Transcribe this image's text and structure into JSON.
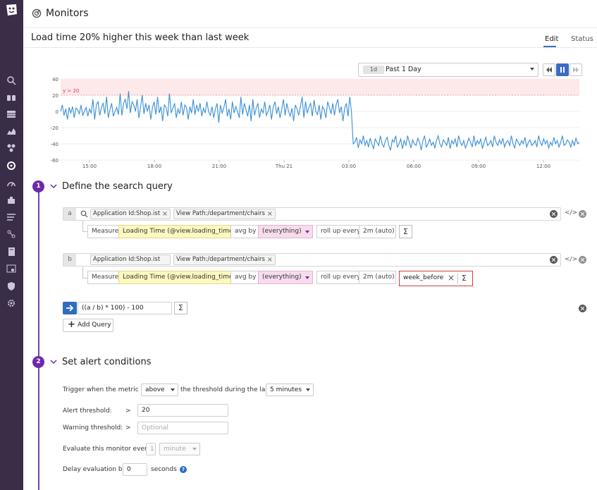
{
  "sidebar": {
    "logo": "datadog-logo",
    "icons": [
      "search-icon",
      "binoculars-icon",
      "dashboards-icon",
      "metrics-icon",
      "integrations-icon",
      "monitors-icon",
      "apm-icon",
      "infrastructure-icon",
      "logs-icon",
      "network-icon",
      "notebooks-icon",
      "rum-icon",
      "security-icon",
      "settings-icon"
    ],
    "bg_color": "#3a2d48"
  },
  "header": {
    "title": "Monitors",
    "icon": "monitor-icon"
  },
  "monitor": {
    "name": "Load time 20% higher this week than last week",
    "tabs": [
      {
        "label": "Edit",
        "active": true
      },
      {
        "label": "Status",
        "active": false
      }
    ]
  },
  "timeframe": {
    "badge": "1d",
    "label": "Past 1 Day"
  },
  "chart_data": {
    "type": "line",
    "threshold_label": "y > 20",
    "threshold": 20,
    "ylim": [
      -60,
      40
    ],
    "y_ticks": [
      "40",
      "20",
      "0",
      "-20",
      "-40",
      "-60"
    ],
    "x_ticks": [
      "15:00",
      "18:00",
      "21:00",
      "Thu 21",
      "03:00",
      "06:00",
      "09:00",
      "12:00"
    ],
    "series": [
      {
        "color": "#3a8fd8",
        "values": [
          0,
          8,
          -5,
          3,
          -10,
          5,
          -2,
          6,
          -8,
          4,
          2,
          -3,
          8,
          -5,
          0,
          5,
          -6,
          3,
          -2,
          15,
          -10,
          8,
          12,
          -5,
          5,
          10,
          -3,
          18,
          -8,
          2,
          10,
          -6,
          0,
          5,
          -4,
          22,
          -5,
          10,
          15,
          3,
          25,
          -2,
          12,
          8,
          0,
          15,
          -8,
          5,
          20,
          -3,
          10,
          0,
          8,
          -10,
          5,
          12,
          -4,
          18,
          -2,
          6,
          -12,
          8,
          5,
          -6,
          22,
          -2,
          4,
          10,
          -8,
          3,
          -3,
          12,
          -5,
          8,
          5,
          -10,
          6,
          -2,
          15,
          -4,
          8,
          0,
          10,
          -6,
          4,
          -2,
          12,
          0,
          -5,
          6,
          -8,
          3,
          10,
          -14,
          8,
          -2,
          5,
          15,
          -6,
          3,
          -10,
          12,
          -2,
          6,
          0,
          -8,
          18,
          -4,
          10,
          2,
          -6,
          8,
          -12,
          15,
          -5,
          4,
          10,
          -8,
          3,
          -2,
          12,
          -5,
          0,
          8,
          -10,
          5,
          12,
          -3,
          6,
          -8,
          2,
          15,
          -5,
          10,
          0,
          -6,
          4,
          -12,
          8,
          3,
          -5,
          6,
          18,
          -8,
          12,
          -2,
          5,
          10,
          -6,
          14,
          0,
          -4,
          8,
          -10,
          6,
          2,
          -8,
          12,
          5,
          -3,
          10,
          -5,
          8,
          15,
          -2,
          6,
          -12,
          4,
          10,
          -6,
          18,
          0,
          -40,
          -38,
          -32,
          -45,
          -35,
          -40,
          -30,
          -42,
          -36,
          -44,
          -33,
          -40,
          -46,
          -34,
          -38,
          -42,
          -30,
          -40,
          -44,
          -36,
          -32,
          -42,
          -48,
          -35,
          -38,
          -30,
          -44,
          -40,
          -34,
          -46,
          -36,
          -42,
          -30,
          -38,
          -45,
          -35,
          -40,
          -42,
          -33,
          -38,
          -48,
          -36,
          -30,
          -44,
          -40,
          -34,
          -42,
          -38,
          -45,
          -36,
          -30,
          -40,
          -44,
          -35,
          -38,
          -42,
          -32,
          -46,
          -36,
          -40,
          -34,
          -44,
          -30,
          -38,
          -42,
          -36,
          -45,
          -40,
          -33,
          -38,
          -44,
          -30,
          -42,
          -36,
          -40,
          -34,
          -46,
          -38,
          -32,
          -42,
          -40,
          -36,
          -44,
          -30,
          -38,
          -42,
          -35,
          -40,
          -33,
          -44,
          -38,
          -36,
          -42,
          -30,
          -40,
          -45,
          -34,
          -38,
          -42,
          -36,
          -40,
          -32,
          -44,
          -38,
          -35,
          -42,
          -40,
          -36,
          -44,
          -30,
          -38,
          -42,
          -34,
          -40,
          -36,
          -45,
          -38,
          -42,
          -32,
          -40,
          -36,
          -44,
          -38,
          -30,
          -42,
          -40,
          -35,
          -38,
          -44,
          -36,
          -42,
          -33,
          -40,
          -38
        ]
      }
    ]
  },
  "steps": [
    {
      "num": "1",
      "title": "Define the search query"
    },
    {
      "num": "2",
      "title": "Set alert conditions"
    }
  ],
  "queries": [
    {
      "letter": "a",
      "tags": [
        "Application Id:Shop.ist",
        "View Path:/department/chairs"
      ],
      "measure_label": "Measure",
      "measure": "Loading Time (@view.loading_time)",
      "avg_by": "avg by",
      "group": "(everything)",
      "rollup_label": "roll up every",
      "rollup": "2m (auto)",
      "sigma": "Σ"
    },
    {
      "letter": "b",
      "tags": [
        "Application Id:Shop.ist",
        "View Path:/department/chairs"
      ],
      "measure_label": "Measure",
      "measure": "Loading Time (@view.loading_time)",
      "avg_by": "avg by",
      "group": "(everything)",
      "rollup_label": "roll up every",
      "rollup": "2m (auto)",
      "function": "week_before",
      "sigma": "Σ"
    }
  ],
  "formula": {
    "value": "((a / b) * 100) - 100",
    "sigma": "Σ"
  },
  "add_query": "Add Query",
  "code_toggle": "</>",
  "alert": {
    "trigger_prefix": "Trigger when the metric is",
    "comparator": "above",
    "trigger_middle": "the threshold during the last",
    "window": "5 minutes",
    "alert_threshold_label": "Alert threshold:",
    "alert_op": ">",
    "alert_value": "20",
    "warning_threshold_label": "Warning threshold:",
    "warning_op": ">",
    "warning_placeholder": "Optional",
    "evaluate_label": "Evaluate this monitor every",
    "evaluate_value": "1",
    "evaluate_unit": "minute",
    "delay_label": "Delay evaluation by",
    "delay_value": "0",
    "delay_unit": "seconds"
  }
}
